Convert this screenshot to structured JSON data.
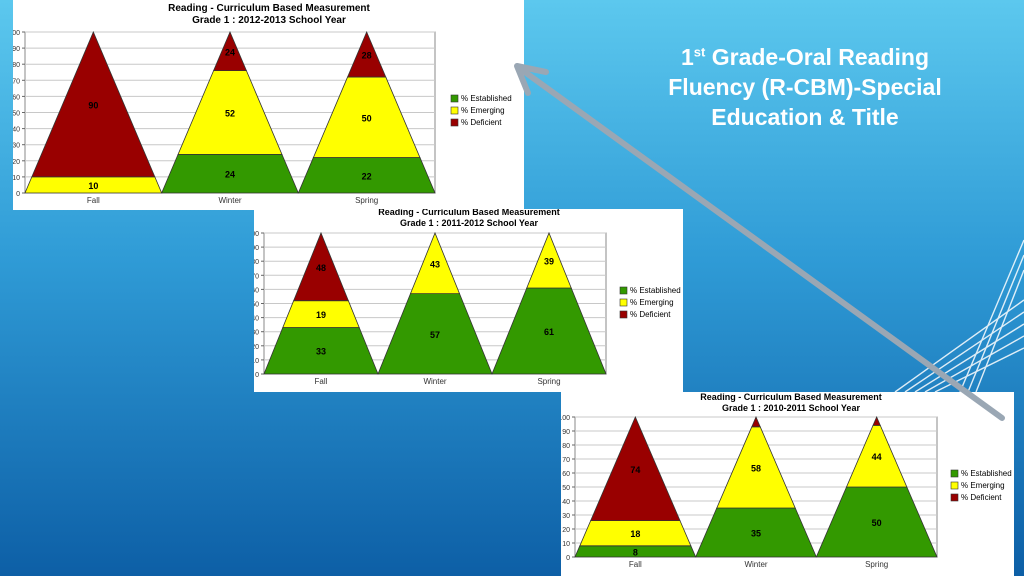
{
  "slide": {
    "title_num": "1",
    "title_sup": "st",
    "title_rest": " Grade-Oral Reading Fluency (R-CBM)-Special Education & Title"
  },
  "colors": {
    "established": "#339900",
    "emerging": "#ffff00",
    "deficient": "#990000",
    "arrow": "#9aa7b4"
  },
  "chart_data": [
    {
      "type": "bar",
      "title": "Reading - Curriculum Based Measurement",
      "subtitle": "Grade 1 : 2012-2013 School Year",
      "categories": [
        "Fall",
        "Winter",
        "Spring"
      ],
      "series": [
        {
          "name": "% Established",
          "values": [
            0,
            24,
            22
          ]
        },
        {
          "name": "% Emerging",
          "values": [
            10,
            52,
            50
          ]
        },
        {
          "name": "% Deficient",
          "values": [
            90,
            24,
            28
          ]
        }
      ],
      "data_labels": [
        [
          "",
          "10",
          "90"
        ],
        [
          "24",
          "52",
          "24"
        ],
        [
          "22",
          "50",
          "28"
        ]
      ],
      "ylim": [
        0,
        100
      ],
      "legend": "right",
      "grid": true
    },
    {
      "type": "bar",
      "title": "Reading - Curriculum Based Measurement",
      "subtitle": "Grade 1 : 2011-2012 School Year",
      "categories": [
        "Fall",
        "Winter",
        "Spring"
      ],
      "series": [
        {
          "name": "% Established",
          "values": [
            33,
            57,
            61
          ]
        },
        {
          "name": "% Emerging",
          "values": [
            19,
            43,
            39
          ]
        },
        {
          "name": "% Deficient",
          "values": [
            48,
            0,
            0
          ]
        }
      ],
      "data_labels": [
        [
          "33",
          "19",
          "48"
        ],
        [
          "57",
          "43",
          ""
        ],
        [
          "61",
          "39",
          ""
        ]
      ],
      "ylim": [
        0,
        100
      ],
      "legend": "right",
      "grid": true
    },
    {
      "type": "bar",
      "title": "Reading - Curriculum Based Measurement",
      "subtitle": "Grade 1 : 2010-2011 School Year",
      "categories": [
        "Fall",
        "Winter",
        "Spring"
      ],
      "series": [
        {
          "name": "% Established",
          "values": [
            8,
            35,
            50
          ]
        },
        {
          "name": "% Emerging",
          "values": [
            18,
            58,
            44
          ]
        },
        {
          "name": "% Deficient",
          "values": [
            74,
            7,
            6
          ]
        }
      ],
      "data_labels": [
        [
          "8",
          "18",
          "74"
        ],
        [
          "35",
          "58",
          ""
        ],
        [
          "50",
          "44",
          ""
        ]
      ],
      "ylim": [
        0,
        100
      ],
      "legend": "right",
      "grid": true
    }
  ]
}
